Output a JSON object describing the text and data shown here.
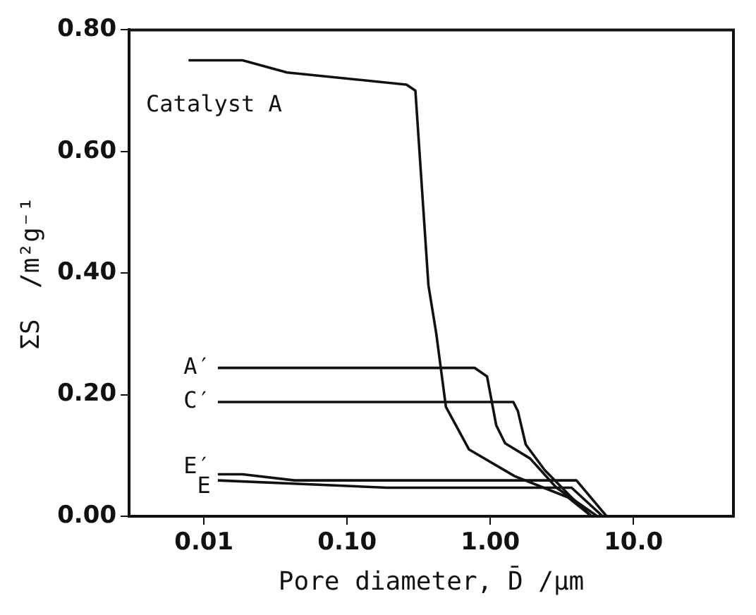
{
  "chart_data": {
    "type": "line",
    "xlabel": "Pore diameter, D̄ /μm",
    "ylabel": "ΣS  /m²g⁻¹",
    "log": "x",
    "grid": false,
    "legend": false,
    "xlim": [
      0.003,
      50
    ],
    "xticks": [
      {
        "value": 0.01,
        "label": "0.01"
      },
      {
        "value": 0.1,
        "label": "0.10"
      },
      {
        "value": 1,
        "label": "1.00"
      },
      {
        "value": 10,
        "label": "10.0"
      }
    ],
    "ylim": [
      0,
      0.8
    ],
    "yticks": [
      {
        "value": 0,
        "label": "0.00"
      },
      {
        "value": 0.2,
        "label": "0.20"
      },
      {
        "value": 0.4,
        "label": "0.40"
      },
      {
        "value": 0.6,
        "label": "0.60"
      },
      {
        "value": 0.8,
        "label": "0.80"
      }
    ],
    "series": [
      {
        "name": "Catalyst A",
        "color": "#111111",
        "x": [
          0.0078,
          0.0186,
          0.038,
          0.26,
          0.3,
          0.37,
          0.42,
          0.49,
          0.71,
          1.48,
          3.5,
          5.1
        ],
        "values": [
          0.75,
          0.75,
          0.73,
          0.71,
          0.7,
          0.38,
          0.3,
          0.18,
          0.11,
          0.066,
          0.031,
          0
        ]
      },
      {
        "name": "A′",
        "color": "#111111",
        "x": [
          0.0125,
          0.78,
          0.95,
          1.1,
          1.27,
          1.9,
          2.9,
          5.6
        ],
        "values": [
          0.244,
          0.244,
          0.23,
          0.15,
          0.12,
          0.095,
          0.047,
          0
        ]
      },
      {
        "name": "C′",
        "color": "#111111",
        "x": [
          0.0125,
          1.45,
          1.56,
          1.77,
          2.4,
          3.7,
          5.1
        ],
        "values": [
          0.188,
          0.188,
          0.173,
          0.118,
          0.076,
          0.031,
          0
        ]
      },
      {
        "name": "E′",
        "color": "#111111",
        "x": [
          0.0125,
          0.0186,
          0.043,
          4.0,
          6.5
        ],
        "values": [
          0.069,
          0.069,
          0.059,
          0.059,
          0
        ]
      },
      {
        "name": "E",
        "color": "#111111",
        "x": [
          0.0125,
          0.19,
          3.7,
          6.1
        ],
        "values": [
          0.059,
          0.047,
          0.047,
          0
        ]
      }
    ]
  }
}
